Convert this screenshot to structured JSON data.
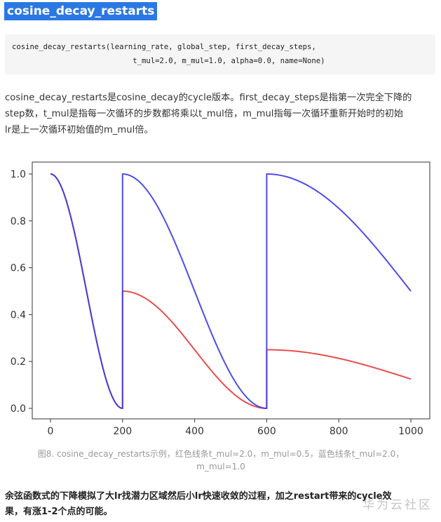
{
  "heading": "cosine_decay_restarts",
  "code_lines": [
    "cosine_decay_restarts(learning_rate, global_step, first_decay_steps,",
    "                           t_mul=2.0, m_mul=1.0, alpha=0.0, name=None)"
  ],
  "paragraph_lines": [
    "cosine_decay_restarts是cosine_decay的cycle版本。first_decay_steps是指第一次完全下降的",
    "step数，t_mul是指每一次循环的步数都将乘以t_mul倍，m_mul指每一次循环重新开始时的初始",
    "lr是上一次循环初始值的m_mul倍。"
  ],
  "chart_data": {
    "type": "line",
    "title": "",
    "xlabel": "",
    "ylabel": "",
    "xlim": [
      0,
      1000
    ],
    "ylim": [
      0.0,
      1.0
    ],
    "x_ticks": [
      "0",
      "200",
      "400",
      "600",
      "800",
      "1000"
    ],
    "y_ticks": [
      "0.0",
      "0.2",
      "0.4",
      "0.6",
      "0.8",
      "1.0"
    ],
    "grid": false,
    "series": [
      {
        "color": "#e83a3a",
        "t_mul": 2.0,
        "m_mul": 0.5,
        "x": [
          0,
          50,
          100,
          150,
          200,
          200,
          300,
          400,
          500,
          600,
          600,
          700,
          800,
          900,
          1000
        ],
        "y": [
          1.0,
          0.854,
          0.5,
          0.146,
          0.0,
          0.5,
          0.427,
          0.25,
          0.073,
          0.0,
          0.25,
          0.239,
          0.213,
          0.173,
          0.125
        ]
      },
      {
        "color": "#3a3ae8",
        "t_mul": 2.0,
        "m_mul": 1.0,
        "x": [
          0,
          50,
          100,
          150,
          200,
          200,
          300,
          400,
          500,
          600,
          600,
          700,
          800,
          900,
          1000
        ],
        "y": [
          1.0,
          0.854,
          0.5,
          0.146,
          0.0,
          1.0,
          0.854,
          0.5,
          0.146,
          0.0,
          1.0,
          0.962,
          0.854,
          0.691,
          0.5
        ]
      }
    ]
  },
  "caption_lines": [
    "图8. cosine_decay_restarts示例，红色线条t_mul=2.0，m_mul=0.5，蓝色线条t_mul=2.0，",
    "m_mul=1.0"
  ],
  "bold_lines": [
    "余弦函数式的下降模拟了大lr找潜力区域然后小lr快速收敛的过程，加之restart带来的cycle效",
    "果，有涨1-2个点的可能。"
  ],
  "watermark": "华为云社区"
}
